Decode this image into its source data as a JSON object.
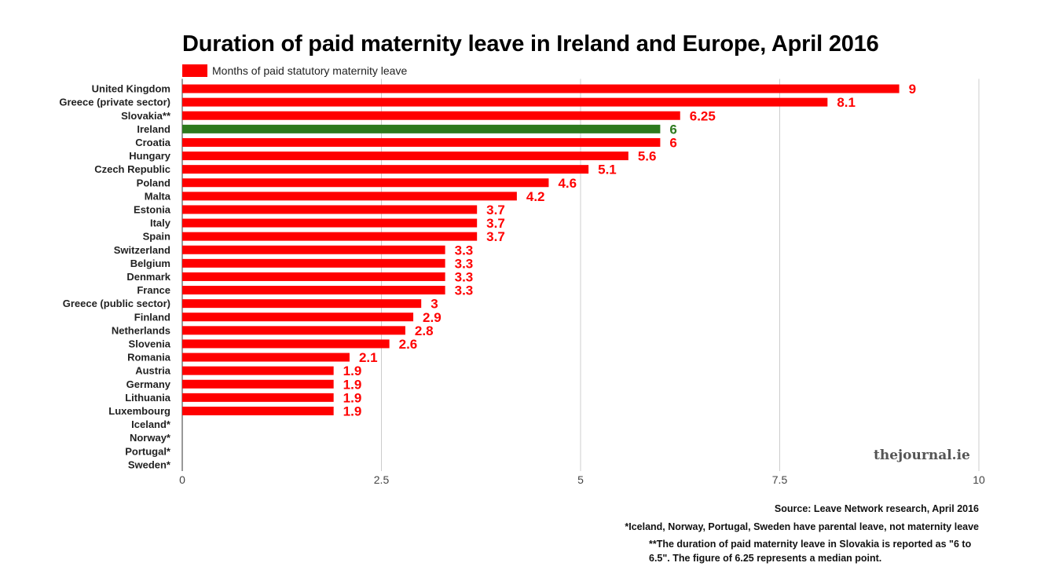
{
  "chart_data": {
    "type": "bar",
    "orientation": "horizontal",
    "title": "Duration of paid maternity leave in Ireland and Europe, April 2016",
    "legend": {
      "label": "Months of paid statutory maternity leave",
      "color": "#ff0000",
      "placement": "top-left"
    },
    "categories": [
      "United Kingdom",
      "Greece (private sector)",
      "Slovakia**",
      "Ireland",
      "Croatia",
      "Hungary",
      "Czech Republic",
      "Poland",
      "Malta",
      "Estonia",
      "Italy",
      "Spain",
      "Switzerland",
      "Belgium",
      "Denmark",
      "France",
      "Greece (public sector)",
      "Finland",
      "Netherlands",
      "Slovenia",
      "Romania",
      "Austria",
      "Germany",
      "Lithuania",
      "Luxembourg",
      "Iceland*",
      "Norway*",
      "Portugal*",
      "Sweden*"
    ],
    "values": [
      9,
      8.1,
      6.25,
      6,
      6,
      5.6,
      5.1,
      4.6,
      4.2,
      3.7,
      3.7,
      3.7,
      3.3,
      3.3,
      3.3,
      3.3,
      3,
      2.9,
      2.8,
      2.6,
      2.1,
      1.9,
      1.9,
      1.9,
      1.9,
      null,
      null,
      null,
      null
    ],
    "value_labels": [
      "9",
      "8.1",
      "6.25",
      "6",
      "6",
      "5.6",
      "5.1",
      "4.6",
      "4.2",
      "3.7",
      "3.7",
      "3.7",
      "3.3",
      "3.3",
      "3.3",
      "3.3",
      "3",
      "2.9",
      "2.8",
      "2.6",
      "2.1",
      "1.9",
      "1.9",
      "1.9",
      "1.9",
      "",
      "",
      "",
      ""
    ],
    "highlight": {
      "category": "Ireland",
      "color": "#2d7a1e"
    },
    "bar_color": "#ff0000",
    "xlim": [
      0,
      10
    ],
    "xticks": [
      0,
      2.5,
      5,
      7.5,
      10
    ],
    "xtick_labels": [
      "0",
      "2.5",
      "5",
      "7.5",
      "10"
    ],
    "grid": true
  },
  "watermark": "thejournal.ie",
  "footer": {
    "source": "Source: Leave Network research, April 2016",
    "note1": "*Iceland, Norway, Portugal, Sweden have parental leave, not maternity leave",
    "note2": "**The duration of paid maternity leave in Slovakia is reported as \"6 to 6.5\". The figure of 6.25 represents a median point."
  }
}
